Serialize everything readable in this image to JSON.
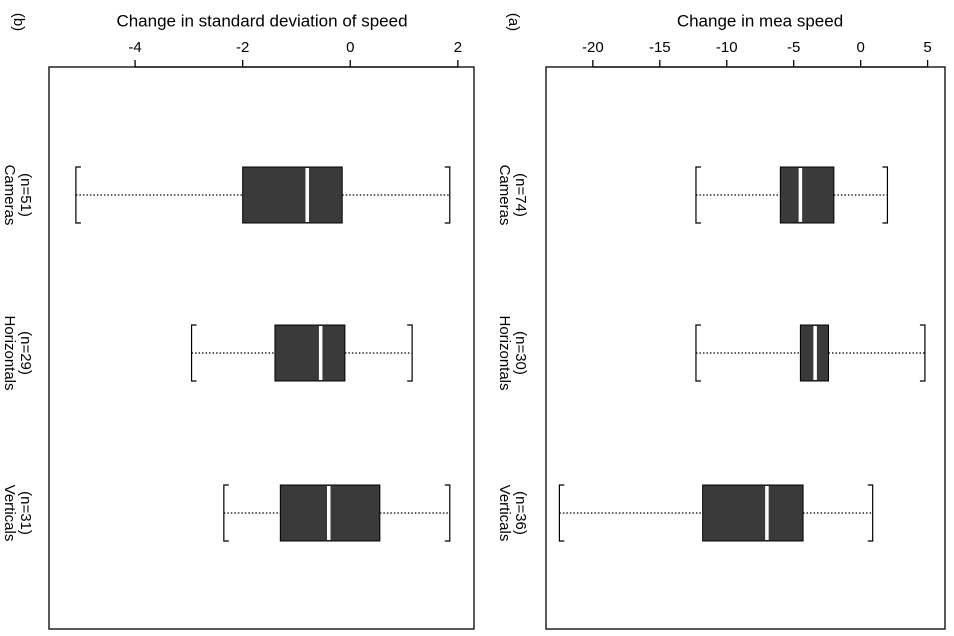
{
  "colors": {
    "box_fill": "#3a3a3a",
    "median": "#ffffff",
    "axis": "#000000",
    "whisker": "#000000"
  },
  "chart_data": [
    {
      "type": "boxplot",
      "panel_label": "(b)",
      "title": "Change in standard deviation of speed",
      "ticks": [
        -4,
        -2,
        0,
        2
      ],
      "tick_labels": [
        "-4",
        "-2",
        "0",
        "2"
      ],
      "axis_range": [
        -5.6,
        2.3
      ],
      "categories": [
        {
          "label": "Cameras",
          "n": "(n=51)",
          "min": -5.1,
          "q1": -2.0,
          "median": -0.8,
          "q3": -0.15,
          "max": 1.85
        },
        {
          "label": "Horizontals",
          "n": "(n=29)",
          "min": -2.95,
          "q1": -1.4,
          "median": -0.55,
          "q3": -0.1,
          "max": 1.15
        },
        {
          "label": "Verticals",
          "n": "(n=31)",
          "min": -2.35,
          "q1": -1.3,
          "median": -0.4,
          "q3": 0.55,
          "max": 1.85
        }
      ]
    },
    {
      "type": "boxplot",
      "panel_label": "(a)",
      "title": "Change in mea speed",
      "ticks": [
        -20,
        -15,
        -10,
        -5,
        0,
        5
      ],
      "tick_labels": [
        "-20",
        "-15",
        "-10",
        "-5",
        "0",
        "5"
      ],
      "axis_range": [
        -23.5,
        6.3
      ],
      "categories": [
        {
          "label": "Cameras",
          "n": "(n=74)",
          "min": -12.3,
          "q1": -6.0,
          "median": -4.5,
          "q3": -2.0,
          "max": 2.0
        },
        {
          "label": "Horizontals",
          "n": "(n=30)",
          "min": -12.3,
          "q1": -4.5,
          "median": -3.4,
          "q3": -2.4,
          "max": 4.8
        },
        {
          "label": "Verticals",
          "n": "(n=36)",
          "min": -22.5,
          "q1": -11.8,
          "median": -7.0,
          "q3": -4.3,
          "max": 0.9
        }
      ]
    }
  ]
}
